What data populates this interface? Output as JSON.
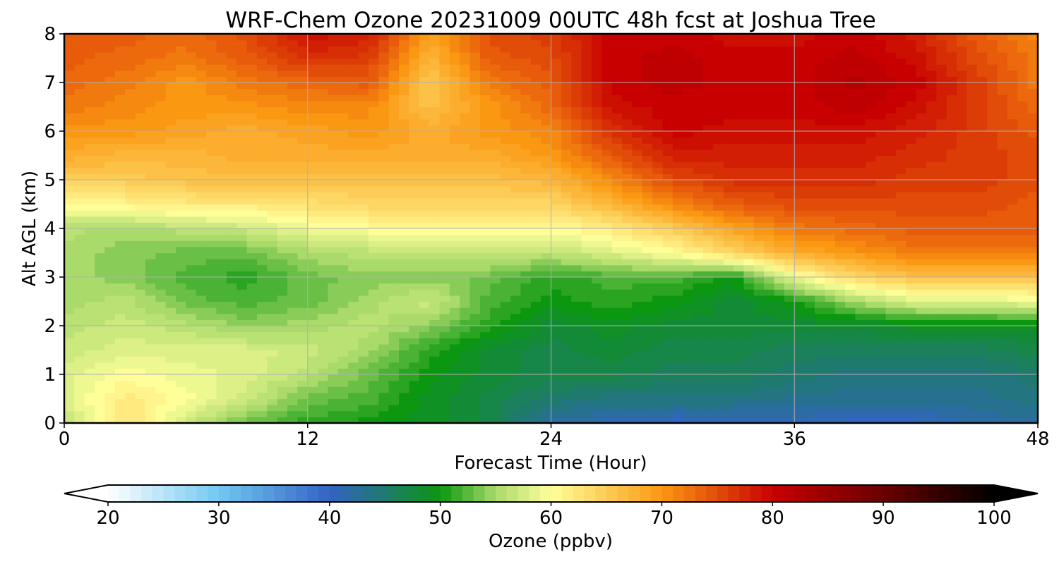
{
  "chart_data": {
    "type": "heatmap",
    "title": "WRF-Chem Ozone  20231009 00UTC 48h fcst at Joshua Tree",
    "xlabel": "Forecast Time (Hour)",
    "ylabel": "Alt AGL (km)",
    "xlim": [
      0,
      48
    ],
    "ylim": [
      0,
      8
    ],
    "xticks": [
      "0",
      "12",
      "24",
      "36",
      "48"
    ],
    "yticks": [
      "0",
      "1",
      "2",
      "3",
      "4",
      "5",
      "6",
      "7",
      "8"
    ],
    "grid": true,
    "x": [
      0,
      3,
      6,
      9,
      12,
      15,
      18,
      21,
      24,
      27,
      30,
      33,
      36,
      39,
      42,
      45,
      48
    ],
    "y": [
      0,
      0.5,
      1,
      1.5,
      2,
      2.5,
      3,
      3.5,
      4,
      4.5,
      5,
      5.5,
      6,
      6.5,
      7,
      7.5,
      8
    ],
    "z": [
      [
        56,
        63,
        57,
        53,
        51,
        50,
        49,
        47,
        42,
        41,
        40,
        40,
        41,
        40,
        40,
        42,
        42
      ],
      [
        58,
        62,
        60,
        57,
        53,
        52,
        49,
        47,
        45,
        44,
        44,
        44,
        43,
        43,
        43,
        43,
        44
      ],
      [
        58,
        60,
        59,
        58,
        56,
        53,
        50,
        48,
        47,
        47,
        46,
        46,
        45,
        44,
        44,
        44,
        45
      ],
      [
        57,
        58,
        58,
        58,
        57,
        55,
        51,
        48,
        47,
        48,
        47,
        47,
        46,
        46,
        46,
        46,
        47
      ],
      [
        56,
        57,
        56,
        54,
        55,
        56,
        54,
        51,
        48,
        49,
        48,
        48,
        48,
        48,
        49,
        49,
        49
      ],
      [
        55,
        56,
        53,
        52,
        53,
        55,
        57,
        52,
        50,
        51,
        50,
        48,
        50,
        55,
        58,
        58,
        59
      ],
      [
        55,
        54,
        52,
        51,
        53,
        54,
        54,
        53,
        51,
        52,
        52,
        50,
        59,
        64,
        66,
        66,
        66
      ],
      [
        55,
        54,
        53,
        53,
        55,
        56,
        56,
        57,
        56,
        58,
        60,
        64,
        68,
        70,
        72,
        72,
        72
      ],
      [
        56,
        55,
        56,
        57,
        59,
        60,
        61,
        61,
        60,
        62,
        65,
        69,
        72,
        73,
        74,
        74,
        74
      ],
      [
        60,
        61,
        62,
        62,
        63,
        64,
        64,
        64,
        64,
        67,
        71,
        74,
        75,
        75,
        75,
        75,
        74
      ],
      [
        65,
        65,
        66,
        66,
        66,
        66,
        66,
        66,
        67,
        71,
        75,
        77,
        77,
        77,
        76,
        76,
        75
      ],
      [
        68,
        67,
        67,
        68,
        68,
        68,
        68,
        68,
        70,
        74,
        78,
        78,
        78,
        78,
        77,
        76,
        75
      ],
      [
        70,
        70,
        69,
        68,
        69,
        70,
        68,
        70,
        71,
        77,
        80,
        79,
        79,
        79,
        78,
        76,
        74
      ],
      [
        72,
        71,
        70,
        70,
        71,
        71,
        66,
        70,
        73,
        79,
        80,
        80,
        80,
        81,
        79,
        76,
        73
      ],
      [
        73,
        72,
        70,
        72,
        73,
        74,
        65,
        72,
        74,
        80,
        81,
        80,
        80,
        82,
        80,
        76,
        72
      ],
      [
        74,
        73,
        72,
        74,
        77,
        76,
        67,
        74,
        75,
        80,
        81,
        80,
        80,
        81,
        79,
        75,
        72
      ],
      [
        74,
        74,
        73,
        75,
        79,
        78,
        69,
        75,
        76,
        80,
        80,
        79,
        79,
        80,
        78,
        74,
        71
      ]
    ],
    "colorbar": {
      "label": "Ozone  (ppbv)",
      "min": 20,
      "max": 100,
      "extend": "both",
      "ticks": [
        "20",
        "30",
        "40",
        "50",
        "60",
        "70",
        "80",
        "90",
        "100"
      ],
      "stops": [
        {
          "v": 20,
          "c": "#ffffff"
        },
        {
          "v": 30,
          "c": "#71c8f2"
        },
        {
          "v": 40,
          "c": "#3363c4"
        },
        {
          "v": 45,
          "c": "#1f7a6e"
        },
        {
          "v": 50,
          "c": "#0b9710"
        },
        {
          "v": 55,
          "c": "#a9da6a"
        },
        {
          "v": 60,
          "c": "#ffff9a"
        },
        {
          "v": 70,
          "c": "#fb9812"
        },
        {
          "v": 80,
          "c": "#c80000"
        },
        {
          "v": 90,
          "c": "#6a0000"
        },
        {
          "v": 100,
          "c": "#000000"
        }
      ]
    }
  }
}
